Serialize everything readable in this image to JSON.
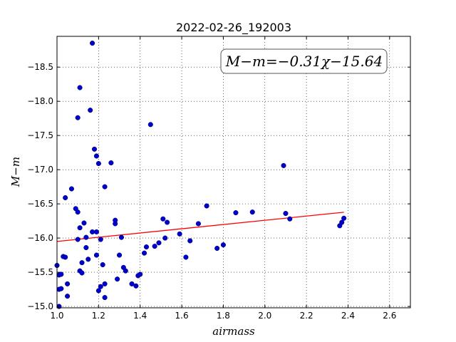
{
  "chart_data": {
    "type": "scatter",
    "title": "2022-02-26_192003",
    "xlabel": "airmass",
    "ylabel": "M−m",
    "xlim": [
      1.0,
      2.7
    ],
    "ylim": [
      -18.95,
      -14.98
    ],
    "y_inverted": true,
    "grid": true,
    "x_ticks": [
      1.0,
      1.2,
      1.4,
      1.6,
      1.8,
      2.0,
      2.2,
      2.4,
      2.6
    ],
    "x_tick_labels": [
      "1.0",
      "1.2",
      "1.4",
      "1.6",
      "1.8",
      "2.0",
      "2.2",
      "2.4",
      "2.6"
    ],
    "y_ticks": [
      -15.0,
      -15.5,
      -16.0,
      -16.5,
      -17.0,
      -17.5,
      -18.0,
      -18.5
    ],
    "y_tick_labels": [
      "−15.0",
      "−15.5",
      "−16.0",
      "−16.5",
      "−17.0",
      "−17.5",
      "−18.0",
      "−18.5"
    ],
    "annotation": "M−m=−0.31χ−15.64",
    "fit": {
      "slope": -0.31,
      "intercept": -15.64,
      "x_range": [
        1.0,
        2.38
      ],
      "color": "#ff0000"
    },
    "point_color": "#0000cc",
    "points": [
      {
        "x": 1.0,
        "y": -15.6
      },
      {
        "x": 1.01,
        "y": -15.46
      },
      {
        "x": 1.01,
        "y": -15.25
      },
      {
        "x": 1.01,
        "y": -15.0
      },
      {
        "x": 1.02,
        "y": -15.26
      },
      {
        "x": 1.02,
        "y": -15.47
      },
      {
        "x": 1.03,
        "y": -15.73
      },
      {
        "x": 1.04,
        "y": -15.72
      },
      {
        "x": 1.04,
        "y": -16.59
      },
      {
        "x": 1.05,
        "y": -15.33
      },
      {
        "x": 1.05,
        "y": -15.15
      },
      {
        "x": 1.07,
        "y": -16.72
      },
      {
        "x": 1.09,
        "y": -16.43
      },
      {
        "x": 1.1,
        "y": -16.38
      },
      {
        "x": 1.1,
        "y": -15.98
      },
      {
        "x": 1.1,
        "y": -17.76
      },
      {
        "x": 1.11,
        "y": -15.52
      },
      {
        "x": 1.11,
        "y": -16.15
      },
      {
        "x": 1.11,
        "y": -18.2
      },
      {
        "x": 1.12,
        "y": -15.64
      },
      {
        "x": 1.12,
        "y": -15.49
      },
      {
        "x": 1.13,
        "y": -16.22
      },
      {
        "x": 1.14,
        "y": -15.86
      },
      {
        "x": 1.14,
        "y": -16.01
      },
      {
        "x": 1.15,
        "y": -15.69
      },
      {
        "x": 1.16,
        "y": -17.87
      },
      {
        "x": 1.17,
        "y": -16.09
      },
      {
        "x": 1.17,
        "y": -18.85
      },
      {
        "x": 1.18,
        "y": -17.3
      },
      {
        "x": 1.19,
        "y": -17.2
      },
      {
        "x": 1.19,
        "y": -16.09
      },
      {
        "x": 1.19,
        "y": -15.75
      },
      {
        "x": 1.2,
        "y": -17.09
      },
      {
        "x": 1.2,
        "y": -15.23
      },
      {
        "x": 1.21,
        "y": -15.98
      },
      {
        "x": 1.21,
        "y": -15.29
      },
      {
        "x": 1.22,
        "y": -15.61
      },
      {
        "x": 1.23,
        "y": -15.33
      },
      {
        "x": 1.23,
        "y": -15.13
      },
      {
        "x": 1.23,
        "y": -16.75
      },
      {
        "x": 1.26,
        "y": -17.1
      },
      {
        "x": 1.28,
        "y": -16.21
      },
      {
        "x": 1.28,
        "y": -16.26
      },
      {
        "x": 1.29,
        "y": -15.4
      },
      {
        "x": 1.3,
        "y": -15.75
      },
      {
        "x": 1.31,
        "y": -16.01
      },
      {
        "x": 1.32,
        "y": -15.57
      },
      {
        "x": 1.33,
        "y": -15.52
      },
      {
        "x": 1.36,
        "y": -15.33
      },
      {
        "x": 1.38,
        "y": -15.3
      },
      {
        "x": 1.39,
        "y": -15.45
      },
      {
        "x": 1.4,
        "y": -15.47
      },
      {
        "x": 1.42,
        "y": -15.78
      },
      {
        "x": 1.43,
        "y": -15.87
      },
      {
        "x": 1.45,
        "y": -17.66
      },
      {
        "x": 1.47,
        "y": -15.88
      },
      {
        "x": 1.49,
        "y": -15.93
      },
      {
        "x": 1.51,
        "y": -16.28
      },
      {
        "x": 1.52,
        "y": -16.0
      },
      {
        "x": 1.53,
        "y": -16.23
      },
      {
        "x": 1.59,
        "y": -16.06
      },
      {
        "x": 1.62,
        "y": -15.72
      },
      {
        "x": 1.64,
        "y": -15.96
      },
      {
        "x": 1.68,
        "y": -16.21
      },
      {
        "x": 1.72,
        "y": -16.47
      },
      {
        "x": 1.77,
        "y": -15.85
      },
      {
        "x": 1.8,
        "y": -15.9
      },
      {
        "x": 1.86,
        "y": -16.37
      },
      {
        "x": 1.94,
        "y": -16.38
      },
      {
        "x": 2.09,
        "y": -17.06
      },
      {
        "x": 2.1,
        "y": -16.36
      },
      {
        "x": 2.12,
        "y": -16.28
      },
      {
        "x": 2.36,
        "y": -16.18
      },
      {
        "x": 2.37,
        "y": -16.23
      },
      {
        "x": 2.38,
        "y": -16.29
      }
    ]
  }
}
